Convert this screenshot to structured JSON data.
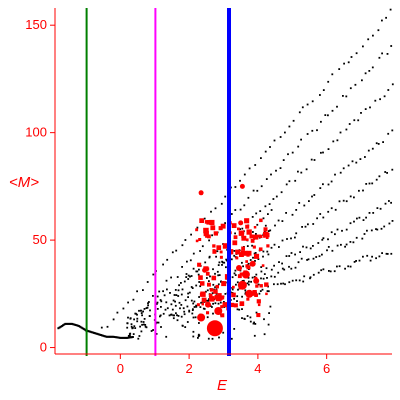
{
  "chart_data": {
    "type": "scatter",
    "title": "",
    "xlabel": "E",
    "ylabel": "<M>",
    "xlim": [
      -1.9,
      7.9
    ],
    "ylim": [
      -3,
      158
    ],
    "x_ticks": [
      0,
      2,
      4,
      6
    ],
    "x_tick_labels": [
      "0",
      "2",
      "4",
      "6"
    ],
    "y_ticks": [
      0,
      50,
      100,
      150
    ],
    "y_tick_labels": [
      "0",
      "50",
      "100",
      "150"
    ],
    "grid": false,
    "legend": "none",
    "colors": {
      "axes": "#ff0000",
      "tick_labels": "#ff0000",
      "axis_labels": "#ff0000",
      "black_points": "#000000",
      "red_points": "#ff0000",
      "line_green": "#007f00",
      "line_magenta": "#ff00ff",
      "line_blue": "#0000ff"
    },
    "vertical_lines": [
      {
        "x": -0.98,
        "color": "#007f00"
      },
      {
        "x": 1.02,
        "color": "#ff00ff"
      },
      {
        "x": 3.16,
        "color": "#0000ff"
      }
    ],
    "black_branches": [
      {
        "x_range": [
          -0.5,
          7.9
        ],
        "y_start": 8,
        "y_end": 156
      },
      {
        "x_range": [
          0.2,
          7.9
        ],
        "y_start": 10,
        "y_end": 140
      },
      {
        "x_range": [
          0.6,
          7.9
        ],
        "y_start": 11,
        "y_end": 122
      },
      {
        "x_range": [
          1.0,
          7.9
        ],
        "y_start": 13,
        "y_end": 100
      },
      {
        "x_range": [
          1.4,
          7.9
        ],
        "y_start": 14,
        "y_end": 83
      },
      {
        "x_range": [
          1.8,
          7.9
        ],
        "y_start": 15,
        "y_end": 68
      },
      {
        "x_range": [
          2.0,
          7.9
        ],
        "y_start": 17,
        "y_end": 58
      },
      {
        "x_range": [
          2.4,
          7.9
        ],
        "y_start": 18,
        "y_end": 45
      }
    ],
    "black_curve_left": [
      [
        -1.8,
        9
      ],
      [
        -1.6,
        11
      ],
      [
        -1.4,
        11
      ],
      [
        -1.2,
        10
      ],
      [
        -1.0,
        8
      ],
      [
        -0.8,
        7
      ],
      [
        -0.6,
        6
      ],
      [
        -0.4,
        5
      ],
      [
        -0.2,
        5
      ],
      [
        0.0,
        4.5
      ],
      [
        0.2,
        4.5
      ],
      [
        0.4,
        5
      ]
    ],
    "red_points": [
      {
        "x": 2.75,
        "y": 9,
        "size": 8
      },
      {
        "x": 2.85,
        "y": 17,
        "size": 4
      },
      {
        "x": 2.35,
        "y": 14,
        "size": 4
      },
      {
        "x": 2.55,
        "y": 20,
        "size": 3
      },
      {
        "x": 2.9,
        "y": 23,
        "size": 3
      },
      {
        "x": 3.55,
        "y": 29,
        "size": 4.5
      },
      {
        "x": 3.65,
        "y": 34,
        "size": 4
      },
      {
        "x": 3.75,
        "y": 25,
        "size": 4
      },
      {
        "x": 3.45,
        "y": 37,
        "size": 3
      },
      {
        "x": 3.95,
        "y": 31,
        "size": 3
      },
      {
        "x": 3.85,
        "y": 39,
        "size": 3
      },
      {
        "x": 2.45,
        "y": 36,
        "size": 2.5
      },
      {
        "x": 2.35,
        "y": 72,
        "size": 2.5
      },
      {
        "x": 3.55,
        "y": 75,
        "size": 2.5
      },
      {
        "x": 3.5,
        "y": 58,
        "size": 2.5
      }
    ]
  }
}
